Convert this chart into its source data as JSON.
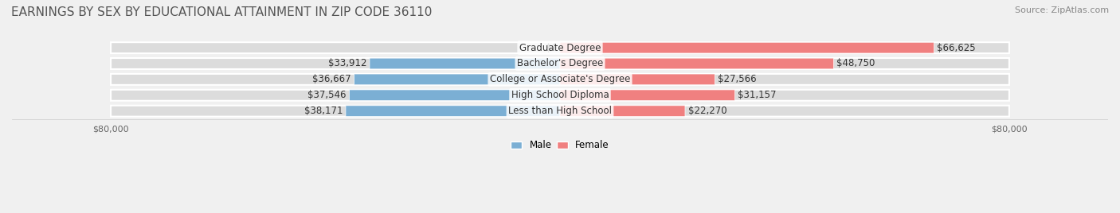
{
  "title": "EARNINGS BY SEX BY EDUCATIONAL ATTAINMENT IN ZIP CODE 36110",
  "source": "Source: ZipAtlas.com",
  "categories": [
    "Less than High School",
    "High School Diploma",
    "College or Associate's Degree",
    "Bachelor's Degree",
    "Graduate Degree"
  ],
  "male_values": [
    38171,
    37546,
    36667,
    33912,
    0
  ],
  "female_values": [
    22270,
    31157,
    27566,
    48750,
    66625
  ],
  "male_color": "#7BAFD4",
  "female_color": "#F08080",
  "male_label": "Male",
  "female_label": "Female",
  "xlim": 80000,
  "x_ticks_left": -80000,
  "x_ticks_right": 80000,
  "background_color": "#f0f0f0",
  "bar_background": "#e8e8e8",
  "title_fontsize": 11,
  "source_fontsize": 8,
  "label_fontsize": 8.5,
  "value_fontsize": 8.5
}
